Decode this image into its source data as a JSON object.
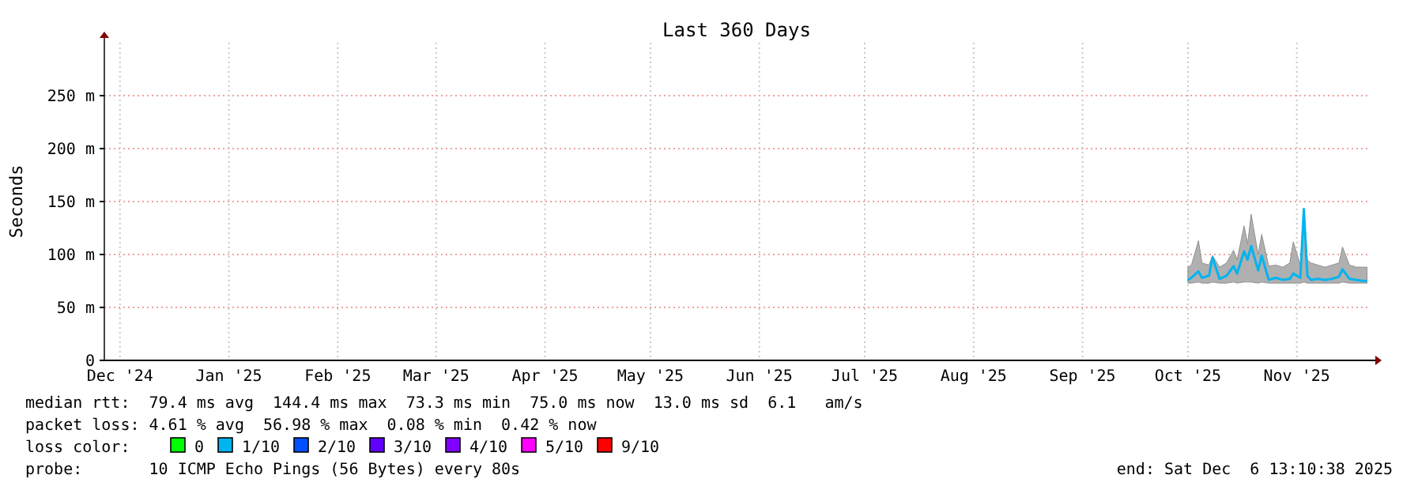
{
  "chart_data": {
    "type": "line",
    "title": "Last 360 Days",
    "ylabel": "Seconds",
    "x": [
      "2025-10-16",
      "2025-10-17",
      "2025-10-19",
      "2025-10-20",
      "2025-10-22",
      "2025-10-23",
      "2025-10-25",
      "2025-10-27",
      "2025-10-29",
      "2025-10-30",
      "2025-11-01",
      "2025-11-02",
      "2025-11-03",
      "2025-11-05",
      "2025-11-06",
      "2025-11-08",
      "2025-11-10",
      "2025-11-12",
      "2025-11-14",
      "2025-11-15",
      "2025-11-17",
      "2025-11-18",
      "2025-11-19",
      "2025-11-20",
      "2025-11-22",
      "2025-11-24",
      "2025-11-26",
      "2025-11-28",
      "2025-11-29",
      "2025-12-01",
      "2025-12-03",
      "2025-12-05",
      "2025-12-06"
    ],
    "series": [
      {
        "color": "#00b4f0",
        "values": [
          76,
          78,
          84,
          78,
          80,
          97,
          77,
          80,
          89,
          82,
          103,
          95,
          108,
          85,
          99,
          76,
          78,
          76,
          77,
          82,
          78,
          143,
          80,
          76,
          77,
          76,
          77,
          79,
          86,
          77,
          76,
          75,
          75
        ],
        "lower": [
          73,
          73,
          74,
          73,
          73,
          74,
          73,
          73,
          74,
          73,
          74,
          74,
          74,
          73,
          74,
          73,
          73,
          73,
          73,
          73,
          73,
          74,
          73,
          73,
          73,
          73,
          73,
          73,
          74,
          73,
          73,
          73,
          73
        ],
        "upper": [
          88,
          90,
          113,
          92,
          90,
          99,
          88,
          92,
          104,
          95,
          127,
          110,
          138,
          100,
          119,
          89,
          90,
          88,
          92,
          112,
          90,
          144,
          95,
          92,
          90,
          88,
          90,
          92,
          107,
          90,
          88,
          88,
          88
        ]
      }
    ],
    "xlim": [
      "2024-12-11T13:10",
      "2025-12-06T13:10"
    ],
    "xticks": [
      {
        "value": "2024-12-16",
        "label": "Dec '24"
      },
      {
        "value": "2025-01-16",
        "label": "Jan '25"
      },
      {
        "value": "2025-02-16",
        "label": "Feb '25"
      },
      {
        "value": "2025-03-16",
        "label": "Mar '25"
      },
      {
        "value": "2025-04-16",
        "label": "Apr '25"
      },
      {
        "value": "2025-05-16",
        "label": "May '25"
      },
      {
        "value": "2025-06-16",
        "label": "Jun '25"
      },
      {
        "value": "2025-07-16",
        "label": "Jul '25"
      },
      {
        "value": "2025-08-16",
        "label": "Aug '25"
      },
      {
        "value": "2025-09-16",
        "label": "Sep '25"
      },
      {
        "value": "2025-10-16",
        "label": "Oct '25"
      },
      {
        "value": "2025-11-16",
        "label": "Nov '25"
      }
    ],
    "ylim": [
      0,
      300
    ],
    "yticks": [
      0,
      {
        "value": 50,
        "label": "50 m"
      },
      {
        "value": 100,
        "label": "100 m"
      },
      {
        "value": 150,
        "label": "150 m"
      },
      {
        "value": 200,
        "label": "200 m"
      },
      {
        "value": 250,
        "label": "250 m"
      }
    ],
    "grid": true,
    "annotations": [
      "median rtt:  79.4 ms avg  144.4 ms max  73.3 ms min  75.0 ms now  13.0 ms sd  6.1   am/s",
      "packet loss: 4.61 % avg  56.98 % max  0.08 % min  0.42 % now",
      "loss color:",
      "0",
      "1/10",
      "2/10",
      "3/10",
      "4/10",
      "5/10",
      "9/10",
      "probe:       10 ICMP Echo Pings (56 Bytes) every 80s",
      "end: Sat Dec  6 13:10:38 2025"
    ]
  }
}
